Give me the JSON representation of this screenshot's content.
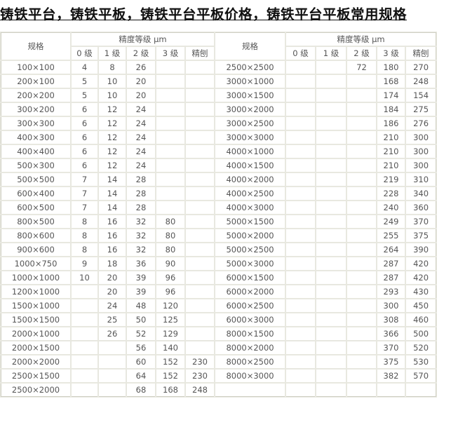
{
  "title": "铸铁平台，铸铁平板，铸铁平台平板价格，铸铁平台平板常用规格",
  "table": {
    "spec_header": "规格",
    "precision_header": "精度等级 μm",
    "grade_headers": [
      "0 级",
      "1 级",
      "2 级",
      "3 级",
      "精刨"
    ],
    "left_rows": [
      [
        "100×100",
        "4",
        "8",
        "26",
        "",
        ""
      ],
      [
        "200×100",
        "5",
        "10",
        "20",
        "",
        ""
      ],
      [
        "200×200",
        "5",
        "10",
        "20",
        "",
        ""
      ],
      [
        "300×200",
        "6",
        "12",
        "24",
        "",
        ""
      ],
      [
        "300×300",
        "6",
        "12",
        "24",
        "",
        ""
      ],
      [
        "400×300",
        "6",
        "12",
        "24",
        "",
        ""
      ],
      [
        "400×400",
        "6",
        "12",
        "24",
        "",
        ""
      ],
      [
        "500×300",
        "6",
        "12",
        "24",
        "",
        ""
      ],
      [
        "500×500",
        "7",
        "14",
        "28",
        "",
        ""
      ],
      [
        "600×400",
        "7",
        "14",
        "28",
        "",
        ""
      ],
      [
        "600×500",
        "7",
        "14",
        "28",
        "",
        ""
      ],
      [
        "800×500",
        "8",
        "16",
        "32",
        "80",
        ""
      ],
      [
        "800×600",
        "8",
        "16",
        "32",
        "80",
        ""
      ],
      [
        "900×600",
        "8",
        "16",
        "32",
        "80",
        ""
      ],
      [
        "1000×750",
        "9",
        "18",
        "36",
        "90",
        ""
      ],
      [
        "1000×1000",
        "10",
        "20",
        "39",
        "96",
        ""
      ],
      [
        "1200×1000",
        "",
        "20",
        "39",
        "96",
        ""
      ],
      [
        "1500×1000",
        "",
        "24",
        "48",
        "120",
        ""
      ],
      [
        "1500×1500",
        "",
        "25",
        "50",
        "125",
        ""
      ],
      [
        "2000×1000",
        "",
        "26",
        "52",
        "129",
        ""
      ],
      [
        "2000×1500",
        "",
        "",
        "56",
        "140",
        ""
      ],
      [
        "2000×2000",
        "",
        "",
        "60",
        "152",
        "230"
      ],
      [
        "2500×1500",
        "",
        "",
        "64",
        "152",
        "230"
      ],
      [
        "2500×2000",
        "",
        "",
        "68",
        "168",
        "248"
      ]
    ],
    "right_rows": [
      [
        "2500×2500",
        "",
        "",
        "72",
        "180",
        "270"
      ],
      [
        "3000×1000",
        "",
        "",
        "",
        "168",
        "248"
      ],
      [
        "3000×1500",
        "",
        "",
        "",
        "174",
        "154"
      ],
      [
        "3000×2000",
        "",
        "",
        "",
        "184",
        "275"
      ],
      [
        "3000×2500",
        "",
        "",
        "",
        "186",
        "276"
      ],
      [
        "3000×3000",
        "",
        "",
        "",
        "210",
        "300"
      ],
      [
        "4000×1000",
        "",
        "",
        "",
        "210",
        "300"
      ],
      [
        "4000×1500",
        "",
        "",
        "",
        "210",
        "300"
      ],
      [
        "4000×2000",
        "",
        "",
        "",
        "219",
        "310"
      ],
      [
        "4000×2500",
        "",
        "",
        "",
        "228",
        "340"
      ],
      [
        "4000×3000",
        "",
        "",
        "",
        "240",
        "360"
      ],
      [
        "5000×1500",
        "",
        "",
        "",
        "249",
        "370"
      ],
      [
        "5000×2000",
        "",
        "",
        "",
        "255",
        "375"
      ],
      [
        "5000×2500",
        "",
        "",
        "",
        "264",
        "390"
      ],
      [
        "5000×3000",
        "",
        "",
        "",
        "287",
        "420"
      ],
      [
        "6000×1500",
        "",
        "",
        "",
        "287",
        "420"
      ],
      [
        "6000×2000",
        "",
        "",
        "",
        "293",
        "430"
      ],
      [
        "6000×2500",
        "",
        "",
        "",
        "300",
        "450"
      ],
      [
        "6000×3000",
        "",
        "",
        "",
        "308",
        "460"
      ],
      [
        "8000×1500",
        "",
        "",
        "",
        "366",
        "500"
      ],
      [
        "8000×2000",
        "",
        "",
        "",
        "370",
        "520"
      ],
      [
        "8000×2500",
        "",
        "",
        "",
        "375",
        "530"
      ],
      [
        "8000×3000",
        "",
        "",
        "",
        "382",
        "570"
      ],
      [
        "",
        "",
        "",
        "",
        "",
        ""
      ]
    ]
  }
}
